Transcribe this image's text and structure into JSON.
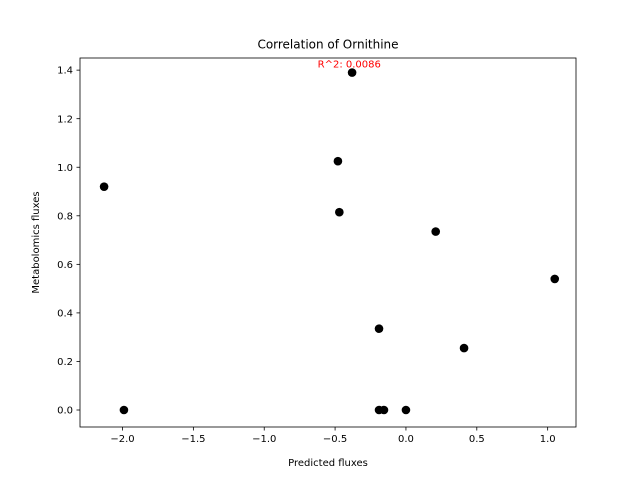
{
  "chart_data": {
    "type": "scatter",
    "title": "Correlation of Ornithine",
    "xlabel": "Predicted fluxes",
    "ylabel": "Metabolomics fluxes",
    "xlim": [
      -2.3,
      1.2
    ],
    "ylim": [
      -0.07,
      1.45
    ],
    "x_ticks": [
      -2.0,
      -1.5,
      -1.0,
      -0.5,
      0.0,
      0.5,
      1.0
    ],
    "x_tick_labels": [
      "−2.0",
      "−1.5",
      "−1.0",
      "−0.5",
      "0.0",
      "0.5",
      "1.0"
    ],
    "y_ticks": [
      0.0,
      0.2,
      0.4,
      0.6,
      0.8,
      1.0,
      1.2,
      1.4
    ],
    "y_tick_labels": [
      "0.0",
      "0.2",
      "0.4",
      "0.6",
      "0.8",
      "1.0",
      "1.2",
      "1.4"
    ],
    "grid": false,
    "marker_color": "#000000",
    "points": [
      {
        "x": -2.13,
        "y": 0.92
      },
      {
        "x": -1.99,
        "y": 0.0
      },
      {
        "x": -0.48,
        "y": 1.025
      },
      {
        "x": -0.47,
        "y": 0.815
      },
      {
        "x": -0.38,
        "y": 1.39
      },
      {
        "x": -0.19,
        "y": 0.335
      },
      {
        "x": -0.19,
        "y": 0.0
      },
      {
        "x": -0.155,
        "y": 0.0
      },
      {
        "x": 0.0,
        "y": 0.0
      },
      {
        "x": 0.21,
        "y": 0.735
      },
      {
        "x": 0.41,
        "y": 0.255
      },
      {
        "x": 1.05,
        "y": 0.54
      }
    ],
    "annotation": {
      "text": "R^2: 0.0086",
      "x": -0.4,
      "y": 1.41,
      "color": "#ff0000"
    }
  }
}
